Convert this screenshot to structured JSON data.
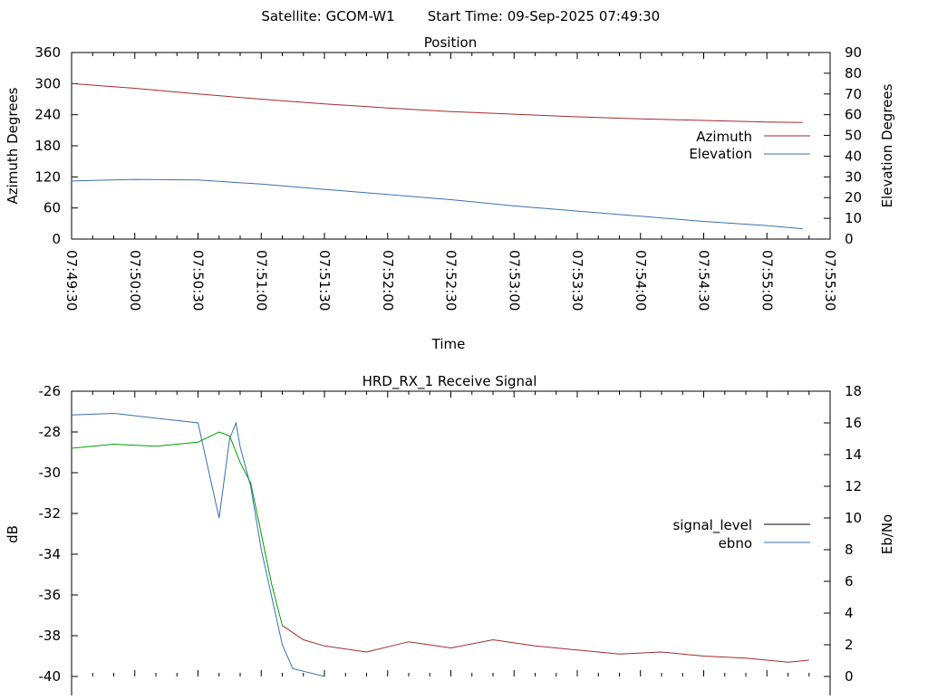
{
  "header": {
    "satellite_label": "Satellite: GCOM-W1",
    "start_time_label": "Start Time: 09-Sep-2025 07:49:30"
  },
  "colors": {
    "azimuth": "#a52a2a",
    "elevation": "#3a6fb0",
    "signal_level": "#000000",
    "ebno": "#3a6fb0",
    "signal_locked": "#00a000",
    "signal_unlocked": "#a52a2a"
  },
  "chart_data": [
    {
      "type": "line",
      "title": "Position",
      "xlabel": "Time",
      "ylabel": "Azimuth Degrees",
      "y2label": "Elevation Degrees",
      "x_ticks": [
        "07:49:30",
        "07:50:00",
        "07:50:30",
        "07:51:00",
        "07:51:30",
        "07:52:00",
        "07:52:30",
        "07:53:00",
        "07:53:30",
        "07:54:00",
        "07:54:30",
        "07:55:00",
        "07:55:30"
      ],
      "x_range_seconds_from_start": [
        0,
        360
      ],
      "ylim": [
        0,
        360
      ],
      "y_ticks": [
        0,
        60,
        120,
        180,
        240,
        300,
        360
      ],
      "y2lim": [
        0,
        90
      ],
      "y2_ticks": [
        0,
        10,
        20,
        30,
        40,
        50,
        60,
        70,
        80,
        90
      ],
      "legend_position": "right",
      "series": [
        {
          "name": "Azimuth",
          "axis": "y",
          "x": [
            "07:49:30",
            "07:50:00",
            "07:50:30",
            "07:51:00",
            "07:51:30",
            "07:52:00",
            "07:52:30",
            "07:53:00",
            "07:53:30",
            "07:54:00",
            "07:54:30",
            "07:55:00",
            "07:55:17"
          ],
          "values": [
            300,
            291,
            280,
            270,
            261,
            253,
            246,
            241,
            236,
            232,
            229,
            226,
            225
          ]
        },
        {
          "name": "Elevation",
          "axis": "y2",
          "x": [
            "07:49:30",
            "07:50:00",
            "07:50:30",
            "07:51:00",
            "07:51:30",
            "07:52:00",
            "07:52:30",
            "07:53:00",
            "07:53:30",
            "07:54:00",
            "07:54:30",
            "07:55:00",
            "07:55:17"
          ],
          "values": [
            28,
            28.8,
            28.5,
            26.5,
            24,
            21.5,
            19,
            16,
            13.5,
            11,
            8.5,
            6.5,
            5
          ]
        }
      ]
    },
    {
      "type": "line",
      "title": "HRD_RX_1 Receive Signal",
      "xlabel": "",
      "ylabel": "dB",
      "y2label": "Eb/No",
      "ylim": [
        -40,
        -26
      ],
      "y_ticks": [
        -40,
        -38,
        -36,
        -34,
        -32,
        -30,
        -28,
        -26
      ],
      "y2lim": [
        0,
        18
      ],
      "y2_ticks": [
        0,
        2,
        4,
        6,
        8,
        10,
        12,
        14,
        16,
        18
      ],
      "legend_position": "right",
      "series": [
        {
          "name": "signal_level",
          "axis": "y",
          "x": [
            0,
            20,
            40,
            60,
            70,
            75,
            80,
            85,
            90,
            95,
            100,
            110,
            120,
            140,
            160,
            180,
            200,
            220,
            240,
            260,
            280,
            300,
            320,
            340,
            350
          ],
          "values": [
            -28.8,
            -28.6,
            -28.7,
            -28.5,
            -28.0,
            -28.2,
            -29.5,
            -30.5,
            -33.0,
            -35.5,
            -37.5,
            -38.2,
            -38.5,
            -38.8,
            -38.3,
            -38.6,
            -38.2,
            -38.5,
            -38.7,
            -38.9,
            -38.8,
            -39.0,
            -39.1,
            -39.3,
            -39.2
          ]
        },
        {
          "name": "ebno",
          "axis": "y2",
          "x": [
            0,
            20,
            40,
            60,
            65,
            70,
            75,
            78,
            80,
            85,
            90,
            95,
            100,
            105,
            120
          ],
          "values": [
            16.5,
            16.6,
            16.3,
            16.0,
            13.0,
            10.0,
            15.0,
            16.0,
            14.5,
            12.0,
            8.0,
            5.0,
            2.0,
            0.5,
            0.0
          ]
        }
      ]
    }
  ]
}
